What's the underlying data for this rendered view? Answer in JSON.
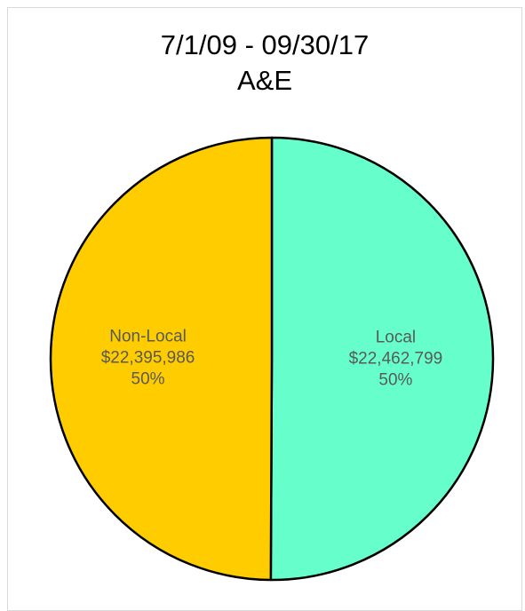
{
  "chart_data": {
    "type": "pie",
    "title": "7/1/09 - 09/30/17",
    "subtitle": "A&E",
    "slices": [
      {
        "name": "Local",
        "value_label": "$22,462,799",
        "value": 22462799,
        "percent_label": "50%",
        "color": "#66FFCC"
      },
      {
        "name": "Non-Local",
        "value_label": "$22,395,986",
        "value": 22395986,
        "percent_label": "50%",
        "color": "#FFCC00"
      }
    ],
    "label_color": "#595959",
    "edge_color": "#000000"
  }
}
